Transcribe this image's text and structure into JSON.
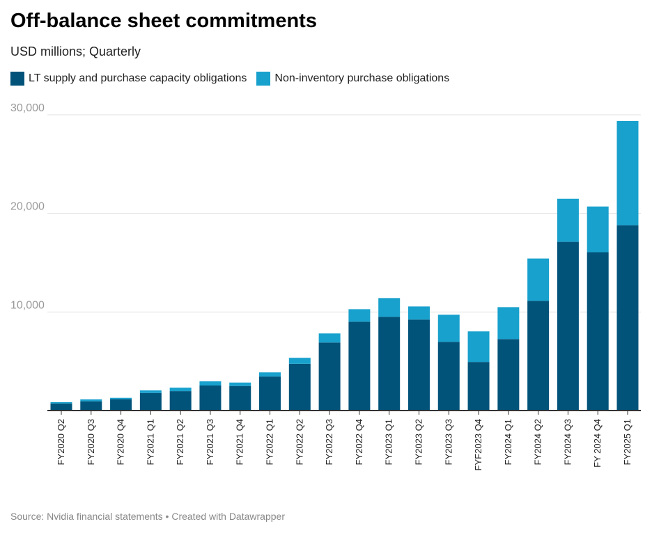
{
  "title": "Off-balance sheet commitments",
  "subtitle": "USD millions; Quarterly",
  "source": "Source: Nvidia financial statements • Created with Datawrapper",
  "chart_data": {
    "type": "bar",
    "stacked": true,
    "title": "Off-balance sheet commitments",
    "ylabel": "USD millions",
    "ylim": [
      0,
      30000
    ],
    "yticks": [
      10000,
      20000,
      30000
    ],
    "ytick_labels": [
      "10,000",
      "20,000",
      "30,000"
    ],
    "grid": true,
    "legend_position": "top-left",
    "categories": [
      "FY2020 Q2",
      "FY2020 Q3",
      "FY2020 Q4",
      "FY2021 Q1",
      "FY2021 Q2",
      "FY2021 Q3",
      "FY2021 Q4",
      "FY2022 Q1",
      "FY2022 Q2",
      "FY2022 Q3",
      "FY2022 Q4",
      "FY2023 Q1",
      "FY2023 Q2",
      "FY2023 Q3",
      "FYF2023 Q4",
      "FY2024 Q1",
      "FY2024 Q2",
      "FY2024 Q3",
      "FY 2024 Q4",
      "FY2025 Q1"
    ],
    "series": [
      {
        "name": "LT supply and purchase capacity obligations",
        "color": "#02537a",
        "values": [
          720,
          940,
          1150,
          1780,
          1970,
          2540,
          2490,
          3450,
          4740,
          6900,
          9010,
          9510,
          9230,
          6970,
          4930,
          7250,
          11130,
          17110,
          16060,
          18800
        ]
      },
      {
        "name": "Non-inventory purchase obligations",
        "color": "#18a1cd",
        "values": [
          130,
          190,
          140,
          260,
          350,
          420,
          350,
          420,
          610,
          920,
          1270,
          1900,
          1330,
          2750,
          3100,
          3240,
          4290,
          4370,
          4640,
          10570
        ]
      }
    ]
  }
}
